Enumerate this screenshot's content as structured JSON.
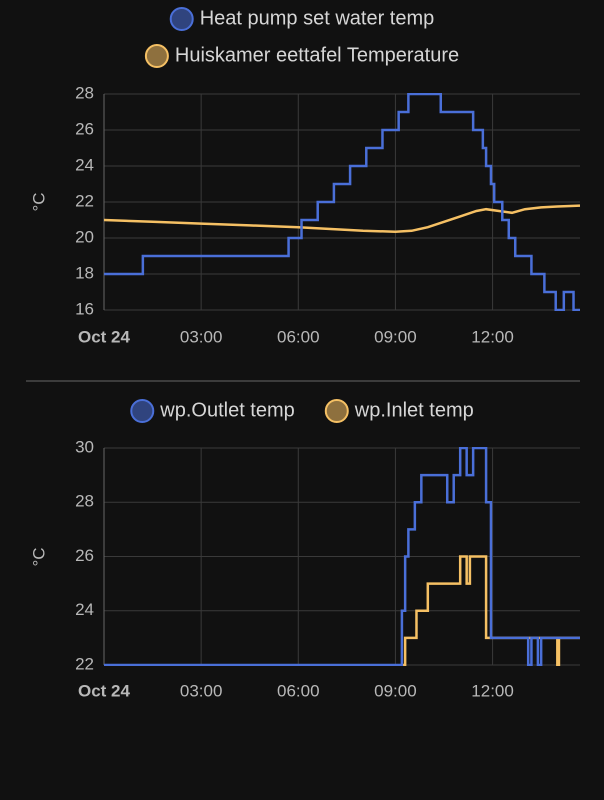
{
  "chart_data": [
    {
      "type": "line",
      "step": true,
      "y_label": "°C",
      "xlim": [
        0,
        14.7
      ],
      "ylim": [
        16,
        28
      ],
      "xticks": [
        {
          "value": 0,
          "label": "Oct 24"
        },
        {
          "value": 3,
          "label": "03:00"
        },
        {
          "value": 6,
          "label": "06:00"
        },
        {
          "value": 9,
          "label": "09:00"
        },
        {
          "value": 12,
          "label": "12:00"
        }
      ],
      "yticks": [
        16,
        18,
        20,
        22,
        24,
        26,
        28
      ],
      "grid": true,
      "series": [
        {
          "name": "Heat pump set water temp",
          "color": "#4a6fd8",
          "step": true,
          "x": [
            0,
            1.2,
            5.7,
            6.1,
            6.6,
            7.1,
            7.6,
            8.1,
            8.6,
            9.1,
            9.4,
            10.4,
            11.4,
            11.7,
            11.8,
            11.95,
            12.05,
            12.3,
            12.5,
            12.7,
            13.2,
            13.6,
            13.95,
            14.2,
            14.5,
            14.7
          ],
          "values": [
            18,
            19,
            20,
            21,
            22,
            23,
            24,
            25,
            26,
            27,
            28,
            27,
            26,
            25,
            24,
            23,
            22,
            21,
            20,
            19,
            18,
            17,
            16,
            17,
            16,
            16
          ]
        },
        {
          "name": "Huiskamer eettafel Temperature",
          "color": "#f5c064",
          "step": false,
          "x": [
            0,
            1.5,
            3,
            4.5,
            6,
            7,
            8,
            9,
            9.5,
            10,
            10.5,
            11,
            11.5,
            11.8,
            12.2,
            12.6,
            13,
            13.5,
            14,
            14.7
          ],
          "values": [
            21.0,
            20.9,
            20.8,
            20.7,
            20.6,
            20.5,
            20.4,
            20.35,
            20.4,
            20.6,
            20.9,
            21.2,
            21.5,
            21.6,
            21.5,
            21.4,
            21.6,
            21.7,
            21.75,
            21.8
          ]
        }
      ]
    },
    {
      "type": "line",
      "step": true,
      "y_label": "°C",
      "xlim": [
        0,
        14.7
      ],
      "ylim": [
        22,
        30
      ],
      "xticks": [
        {
          "value": 0,
          "label": "Oct 24"
        },
        {
          "value": 3,
          "label": "03:00"
        },
        {
          "value": 6,
          "label": "06:00"
        },
        {
          "value": 9,
          "label": "09:00"
        },
        {
          "value": 12,
          "label": "12:00"
        }
      ],
      "yticks": [
        22,
        24,
        26,
        28,
        30
      ],
      "grid": true,
      "series": [
        {
          "name": "wp.Outlet temp",
          "color": "#4a6fd8",
          "step": true,
          "x": [
            0,
            9.2,
            9.3,
            9.4,
            9.6,
            9.8,
            10.6,
            10.8,
            11.0,
            11.2,
            11.4,
            11.8,
            11.95,
            13.1,
            13.2,
            13.4,
            13.5,
            14.7
          ],
          "values": [
            22,
            24,
            26,
            27,
            28,
            29,
            28,
            29,
            30,
            29,
            30,
            28,
            23,
            22,
            23,
            22,
            23,
            23
          ]
        },
        {
          "name": "wp.Inlet temp",
          "color": "#f5c064",
          "step": true,
          "x": [
            9.2,
            9.3,
            9.65,
            10.0,
            11.0,
            11.2,
            11.3,
            11.8,
            14.0,
            14.05,
            14.7
          ],
          "values": [
            22,
            23,
            24,
            25,
            26,
            25,
            26,
            23,
            22,
            23,
            23
          ]
        }
      ]
    }
  ]
}
